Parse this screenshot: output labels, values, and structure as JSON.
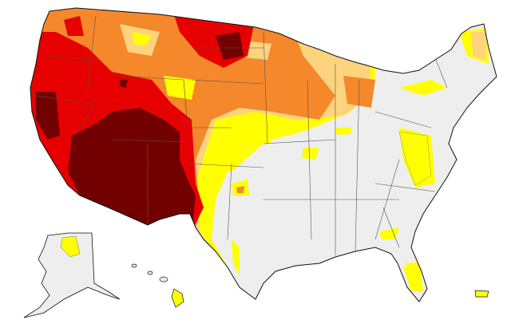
{
  "map": {
    "colors": {
      "land": "#eeeeee",
      "D0_abnormally_dry": "#ffff00",
      "D1_moderate": "#fcd37f",
      "D2_severe": "#f5882a",
      "D3_extreme": "#e60000",
      "D4_exceptional": "#730000",
      "border": "#111111"
    }
  }
}
